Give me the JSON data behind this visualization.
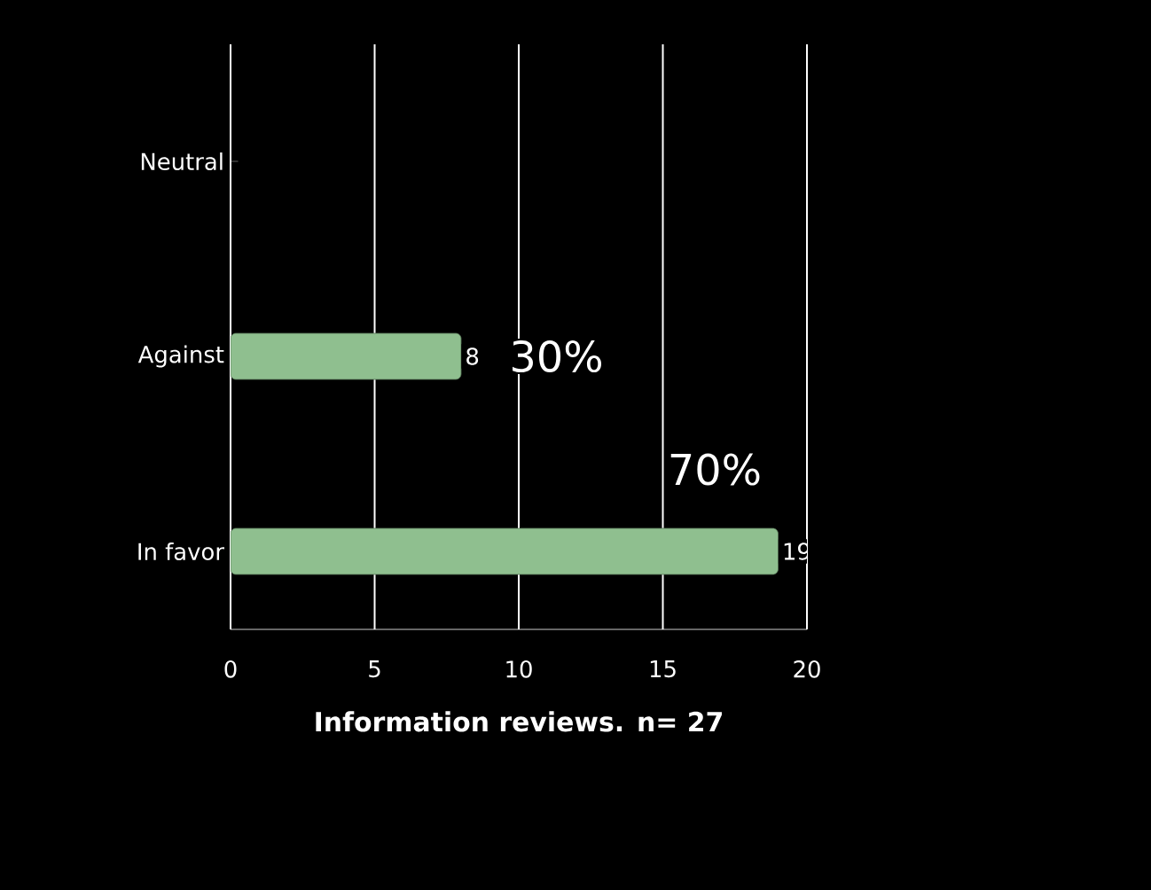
{
  "chart_data": {
    "type": "bar",
    "orientation": "horizontal",
    "categories": [
      "Neutral",
      "Against",
      "In favor"
    ],
    "values": [
      null,
      8,
      19
    ],
    "color": "#8fbf8f",
    "xlim": [
      0,
      20
    ],
    "xticks": [
      0,
      5,
      10,
      15,
      20
    ],
    "xlabel": "Information reviews. n= 27",
    "grid": "x",
    "data_labels": true,
    "annotations": [
      {
        "text": "30%",
        "x": 8,
        "y": "Against"
      },
      {
        "text": "70%",
        "x": 19,
        "y": "In favor"
      }
    ]
  }
}
